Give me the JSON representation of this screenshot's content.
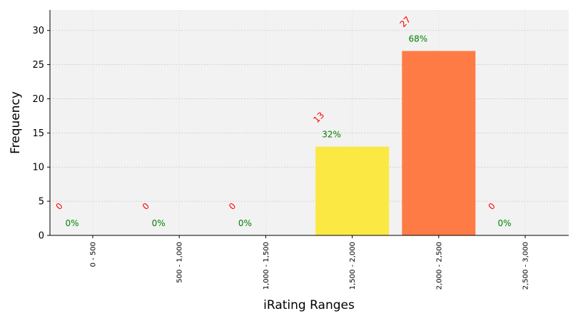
{
  "chart_data": {
    "type": "bar",
    "xlabel": "iRating Ranges",
    "ylabel": "Frequency",
    "categories": [
      "0 - 500",
      "500 - 1,000",
      "1,000 - 1,500",
      "1,500 - 2,000",
      "2,000 - 2,500",
      "2,500 - 3,000"
    ],
    "values": [
      0,
      0,
      0,
      13,
      27,
      0
    ],
    "count_labels": [
      "0",
      "0",
      "0",
      "13",
      "27",
      "0"
    ],
    "percent_labels": [
      "0%",
      "0%",
      "0%",
      "32%",
      "68%",
      "0%"
    ],
    "bar_colors": [
      "#fbe843",
      "#fbe843",
      "#fbe843",
      "#fbe843",
      "#ff7b45",
      "#fbe843"
    ],
    "ylim": [
      0,
      33
    ],
    "yticks": [
      "0",
      "5",
      "10",
      "15",
      "20",
      "25",
      "30"
    ],
    "grid": true,
    "plot_background": "#f2f2f2",
    "count_label_color": "#ff0000",
    "percent_label_color": "#008000"
  }
}
